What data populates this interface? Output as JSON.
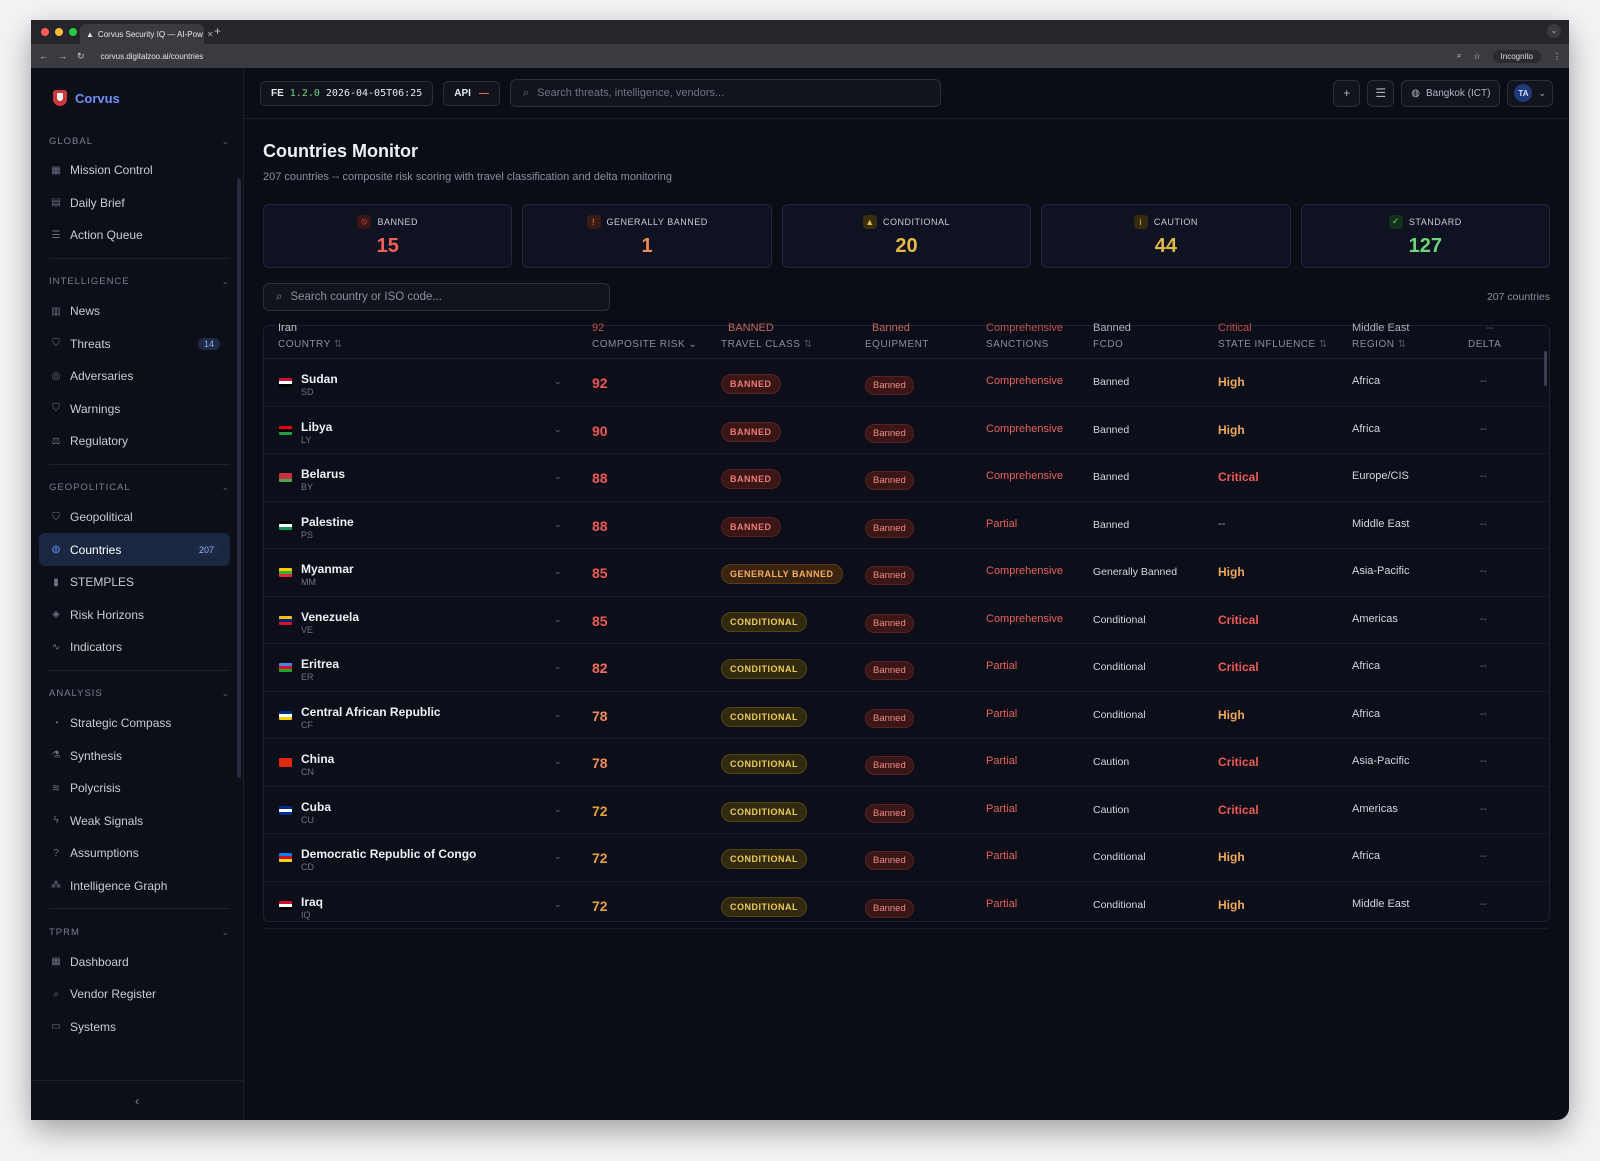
{
  "browser": {
    "tab_title": "Corvus Security IQ — AI-Pow",
    "url": "corvus.digitalzoo.ai/countries",
    "incognito": "Incognito"
  },
  "brand": "Corvus",
  "sidebar": {
    "sections": [
      {
        "title": "GLOBAL",
        "items": [
          {
            "label": "Mission Control",
            "icon": "grid-icon"
          },
          {
            "label": "Daily Brief",
            "icon": "document-icon"
          },
          {
            "label": "Action Queue",
            "icon": "list-icon"
          }
        ]
      },
      {
        "title": "INTELLIGENCE",
        "items": [
          {
            "label": "News",
            "icon": "newspaper-icon"
          },
          {
            "label": "Threats",
            "icon": "shield-icon",
            "badge": "14"
          },
          {
            "label": "Adversaries",
            "icon": "target-icon"
          },
          {
            "label": "Warnings",
            "icon": "shield-icon"
          },
          {
            "label": "Regulatory",
            "icon": "scale-icon"
          }
        ]
      },
      {
        "title": "GEOPOLITICAL",
        "items": [
          {
            "label": "Geopolitical",
            "icon": "shield-icon"
          },
          {
            "label": "Countries",
            "icon": "globe-icon",
            "badge": "207",
            "active": true
          },
          {
            "label": "STEMPLES",
            "icon": "bar-chart-icon"
          },
          {
            "label": "Risk Horizons",
            "icon": "layers-icon"
          },
          {
            "label": "Indicators",
            "icon": "activity-icon"
          }
        ]
      },
      {
        "title": "ANALYSIS",
        "items": [
          {
            "label": "Strategic Compass",
            "icon": "compass-icon"
          },
          {
            "label": "Synthesis",
            "icon": "flask-icon"
          },
          {
            "label": "Polycrisis",
            "icon": "waves-icon"
          },
          {
            "label": "Weak Signals",
            "icon": "zap-icon"
          },
          {
            "label": "Assumptions",
            "icon": "help-circle-icon"
          },
          {
            "label": "Intelligence Graph",
            "icon": "network-icon"
          }
        ]
      },
      {
        "title": "TPRM",
        "items": [
          {
            "label": "Dashboard",
            "icon": "grid-icon"
          },
          {
            "label": "Vendor Register",
            "icon": "search-icon"
          },
          {
            "label": "Systems",
            "icon": "monitor-icon"
          }
        ]
      }
    ]
  },
  "topbar": {
    "fe_label": "FE",
    "version": "1.2.0",
    "timestamp": "2026-04-05T06:25",
    "api_label": "API",
    "api_status": "—",
    "search_placeholder": "Search threats, intelligence, vendors...",
    "timezone": "Bangkok (ICT)",
    "user_initials": "TA"
  },
  "page": {
    "title": "Countries Monitor",
    "subtitle": "207 countries -- composite risk scoring with travel classification and delta monitoring",
    "search_placeholder": "Search country or ISO code...",
    "count_label": "207 countries"
  },
  "cards": [
    {
      "label": "BANNED",
      "value": "15",
      "color": "#f0605a",
      "icon": "ban-icon",
      "iconbg": "#3a1616"
    },
    {
      "label": "GENERALLY BANNED",
      "value": "1",
      "color": "#f08a5a",
      "icon": "shield-alert-icon",
      "iconbg": "#3a1c12"
    },
    {
      "label": "CONDITIONAL",
      "value": "20",
      "color": "#e8b94a",
      "icon": "warning-icon",
      "iconbg": "#3a2e10"
    },
    {
      "label": "CAUTION",
      "value": "44",
      "color": "#e0b84a",
      "icon": "info-icon",
      "iconbg": "#352c10"
    },
    {
      "label": "STANDARD",
      "value": "127",
      "color": "#6fd47a",
      "icon": "check-circle-icon",
      "iconbg": "#12301a"
    }
  ],
  "table": {
    "headers": [
      "COUNTRY",
      "COMPOSITE RISK",
      "TRAVEL CLASS",
      "EQUIPMENT",
      "SANCTIONS",
      "FCDO",
      "STATE INFLUENCE",
      "REGION",
      "DELTA"
    ],
    "ghost_row": {
      "name": "Iran",
      "risk": "92",
      "travel": "BANNED",
      "equip": "Banned",
      "sanctions": "Comprehensive",
      "fcdo": "Banned",
      "influence": "Critical",
      "region": "Middle East",
      "delta": "--"
    },
    "rows": [
      {
        "name": "Sudan",
        "iso": "SD",
        "risk": "92",
        "travel": "BANNED",
        "equip": "Banned",
        "sanctions": "Comprehensive",
        "fcdo": "Banned",
        "influence": "High",
        "region": "Africa",
        "delta": "--"
      },
      {
        "name": "Libya",
        "iso": "LY",
        "risk": "90",
        "travel": "BANNED",
        "equip": "Banned",
        "sanctions": "Comprehensive",
        "fcdo": "Banned",
        "influence": "High",
        "region": "Africa",
        "delta": "--"
      },
      {
        "name": "Belarus",
        "iso": "BY",
        "risk": "88",
        "travel": "BANNED",
        "equip": "Banned",
        "sanctions": "Comprehensive",
        "fcdo": "Banned",
        "influence": "Critical",
        "region": "Europe/CIS",
        "delta": "--"
      },
      {
        "name": "Palestine",
        "iso": "PS",
        "risk": "88",
        "travel": "BANNED",
        "equip": "Banned",
        "sanctions": "Partial",
        "fcdo": "Banned",
        "influence": "--",
        "region": "Middle East",
        "delta": "--"
      },
      {
        "name": "Myanmar",
        "iso": "MM",
        "risk": "85",
        "travel": "GENERALLY BANNED",
        "equip": "Banned",
        "sanctions": "Comprehensive",
        "fcdo": "Generally Banned",
        "influence": "High",
        "region": "Asia-Pacific",
        "delta": "--"
      },
      {
        "name": "Venezuela",
        "iso": "VE",
        "risk": "85",
        "travel": "CONDITIONAL",
        "equip": "Banned",
        "sanctions": "Comprehensive",
        "fcdo": "Conditional",
        "influence": "Critical",
        "region": "Americas",
        "delta": "--"
      },
      {
        "name": "Eritrea",
        "iso": "ER",
        "risk": "82",
        "travel": "CONDITIONAL",
        "equip": "Banned",
        "sanctions": "Partial",
        "fcdo": "Conditional",
        "influence": "Critical",
        "region": "Africa",
        "delta": "--"
      },
      {
        "name": "Central African Republic",
        "iso": "CF",
        "risk": "78",
        "travel": "CONDITIONAL",
        "equip": "Banned",
        "sanctions": "Partial",
        "fcdo": "Conditional",
        "influence": "High",
        "region": "Africa",
        "delta": "--"
      },
      {
        "name": "China",
        "iso": "CN",
        "risk": "78",
        "travel": "CONDITIONAL",
        "equip": "Banned",
        "sanctions": "Partial",
        "fcdo": "Caution",
        "influence": "Critical",
        "region": "Asia-Pacific",
        "delta": "--"
      },
      {
        "name": "Cuba",
        "iso": "CU",
        "risk": "72",
        "travel": "CONDITIONAL",
        "equip": "Banned",
        "sanctions": "Partial",
        "fcdo": "Caution",
        "influence": "Critical",
        "region": "Americas",
        "delta": "--"
      },
      {
        "name": "Democratic Republic of Congo",
        "iso": "CD",
        "risk": "72",
        "travel": "CONDITIONAL",
        "equip": "Banned",
        "sanctions": "Partial",
        "fcdo": "Conditional",
        "influence": "High",
        "region": "Africa",
        "delta": "--"
      },
      {
        "name": "Iraq",
        "iso": "IQ",
        "risk": "72",
        "travel": "CONDITIONAL",
        "equip": "Banned",
        "sanctions": "Partial",
        "fcdo": "Conditional",
        "influence": "High",
        "region": "Middle East",
        "delta": "--"
      }
    ]
  }
}
